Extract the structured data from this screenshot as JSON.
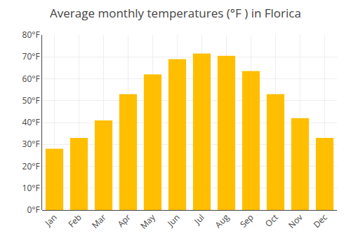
{
  "chart_data": {
    "type": "bar",
    "title": "Average monthly temperatures (°F ) in Florica",
    "categories": [
      "Jan",
      "Feb",
      "Mar",
      "Apr",
      "May",
      "Jun",
      "Jul",
      "Aug",
      "Sep",
      "Oct",
      "Nov",
      "Dec"
    ],
    "values": [
      28,
      33,
      41,
      53,
      62,
      69,
      71.5,
      70.5,
      63.5,
      53,
      42,
      33
    ],
    "color": "#FFBE00",
    "ylim": [
      0,
      80
    ],
    "yticks": [
      {
        "value": 0,
        "label": "0°F"
      },
      {
        "value": 10,
        "label": "10°F"
      },
      {
        "value": 20,
        "label": "20°F"
      },
      {
        "value": 30,
        "label": "30°F"
      },
      {
        "value": 40,
        "label": "40°F"
      },
      {
        "value": 50,
        "label": "50°F"
      },
      {
        "value": 60,
        "label": "60°F"
      },
      {
        "value": 70,
        "label": "70°F"
      },
      {
        "value": 80,
        "label": "80°F"
      }
    ],
    "grid": true
  }
}
